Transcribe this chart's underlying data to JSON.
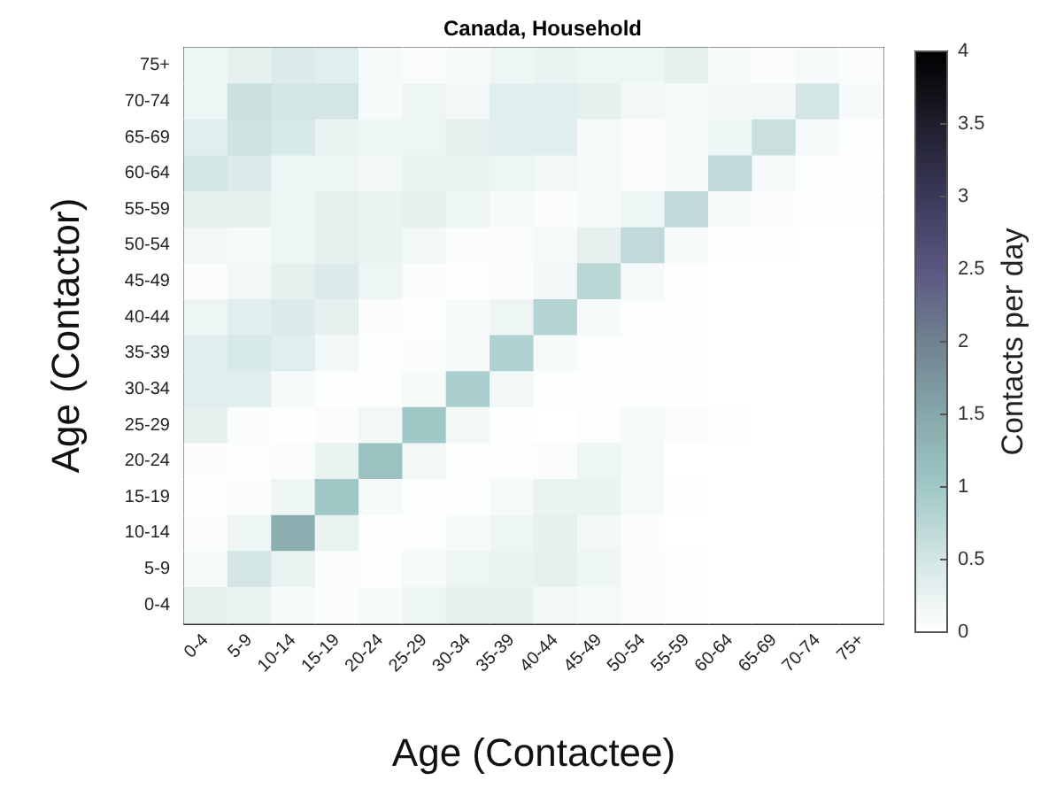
{
  "chart_data": {
    "type": "heatmap",
    "title": "Canada, Household",
    "xlabel": "Age (Contactee)",
    "ylabel": "Age (Contactor)",
    "clabel": "Contacts per day",
    "categories": [
      "0-4",
      "5-9",
      "10-14",
      "15-19",
      "20-24",
      "25-29",
      "30-34",
      "35-39",
      "40-44",
      "45-49",
      "50-54",
      "55-59",
      "60-64",
      "65-69",
      "70-74",
      "75+"
    ],
    "y_categories": [
      "75+",
      "70-74",
      "65-69",
      "60-64",
      "55-59",
      "50-54",
      "45-49",
      "40-44",
      "35-39",
      "30-34",
      "25-29",
      "20-24",
      "15-19",
      "10-14",
      "5-9",
      "0-4"
    ],
    "cells": [
      [
        0.2,
        0.3,
        0.4,
        0.35,
        0.1,
        0.05,
        0.1,
        0.2,
        0.25,
        0.2,
        0.2,
        0.3,
        0.1,
        0.05,
        0.1,
        0.05
      ],
      [
        0.2,
        0.6,
        0.5,
        0.5,
        0.1,
        0.2,
        0.15,
        0.35,
        0.35,
        0.3,
        0.15,
        0.1,
        0.15,
        0.15,
        0.5,
        0.1
      ],
      [
        0.35,
        0.55,
        0.45,
        0.25,
        0.2,
        0.2,
        0.3,
        0.35,
        0.35,
        0.1,
        0.05,
        0.1,
        0.2,
        0.6,
        0.1,
        0.02
      ],
      [
        0.5,
        0.4,
        0.2,
        0.2,
        0.15,
        0.25,
        0.25,
        0.2,
        0.15,
        0.1,
        0.05,
        0.1,
        0.7,
        0.1,
        0.02,
        0.02
      ],
      [
        0.3,
        0.3,
        0.2,
        0.3,
        0.25,
        0.3,
        0.2,
        0.1,
        0.05,
        0.1,
        0.2,
        0.7,
        0.1,
        0.05,
        0.02,
        0.02
      ],
      [
        0.15,
        0.1,
        0.2,
        0.3,
        0.25,
        0.15,
        0.05,
        0.05,
        0.1,
        0.3,
        0.7,
        0.1,
        0.02,
        0.02,
        0,
        0
      ],
      [
        0.05,
        0.15,
        0.3,
        0.4,
        0.2,
        0.05,
        0.02,
        0.05,
        0.15,
        0.75,
        0.1,
        0.02,
        0,
        0,
        0,
        0
      ],
      [
        0.2,
        0.35,
        0.4,
        0.3,
        0.05,
        0.02,
        0.1,
        0.2,
        0.8,
        0.1,
        0.03,
        0.02,
        0,
        0,
        0,
        0
      ],
      [
        0.35,
        0.45,
        0.35,
        0.15,
        0.02,
        0.05,
        0.1,
        0.85,
        0.1,
        0.03,
        0.02,
        0.02,
        0,
        0,
        0,
        0
      ],
      [
        0.35,
        0.35,
        0.1,
        0.02,
        0.03,
        0.1,
        0.9,
        0.15,
        0.02,
        0.02,
        0.02,
        0.02,
        0,
        0,
        0,
        0
      ],
      [
        0.3,
        0.05,
        0.02,
        0.05,
        0.15,
        1.0,
        0.15,
        0.02,
        0,
        0.03,
        0.1,
        0.05,
        0.02,
        0,
        0,
        0
      ],
      [
        0.05,
        0.03,
        0.05,
        0.25,
        1.1,
        0.15,
        0.03,
        0.02,
        0.05,
        0.2,
        0.1,
        0,
        0,
        0,
        0,
        0
      ],
      [
        0.02,
        0.05,
        0.2,
        1.0,
        0.1,
        0.03,
        0.02,
        0.1,
        0.25,
        0.25,
        0.1,
        0.02,
        0,
        0,
        0,
        0
      ],
      [
        0.05,
        0.2,
        1.4,
        0.25,
        0.02,
        0.03,
        0.1,
        0.2,
        0.3,
        0.15,
        0.05,
        0,
        0,
        0,
        0,
        0
      ],
      [
        0.1,
        0.5,
        0.25,
        0.05,
        0.03,
        0.1,
        0.2,
        0.25,
        0.3,
        0.2,
        0.05,
        0.02,
        0,
        0,
        0,
        0
      ],
      [
        0.3,
        0.25,
        0.1,
        0.05,
        0.1,
        0.2,
        0.3,
        0.3,
        0.15,
        0.1,
        0.05,
        0.02,
        0,
        0,
        0,
        0
      ]
    ],
    "clim": [
      0,
      4
    ],
    "cticks": [
      0,
      0.5,
      1,
      1.5,
      2,
      2.5,
      3,
      3.5,
      4
    ]
  }
}
